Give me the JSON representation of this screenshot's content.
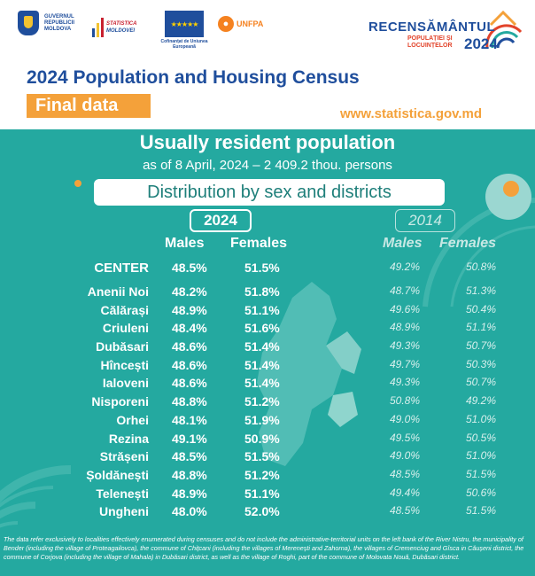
{
  "header": {
    "logos": {
      "gov": "GUVERNUL REPUBLICII MOLDOVA",
      "stat": "STATISTICA",
      "stat_accent": "MOLDOVEI",
      "eu_caption": "Cofinanțat de Uniunea Europeană",
      "unfpa": "UNFPA"
    },
    "census_logo": {
      "title": "RECENSĂMÂNTUL",
      "subtitle": "POPULAȚIEI ȘI LOCUINȚELOR",
      "year": "2024"
    },
    "title": "2024 Population and Housing Census",
    "badge": "Final data",
    "website": "www.statistica.gov.md"
  },
  "main": {
    "title": "Usually resident population",
    "date_line": "as of 8 April, 2024 – 2 409.2 thou. persons",
    "distribution_label": "Distribution by sex and districts",
    "year_current": "2024",
    "year_previous": "2014",
    "col_males": "Males",
    "col_females": "Females",
    "col_males_old": "Males",
    "col_females_old": "Females"
  },
  "table": {
    "rows": [
      {
        "name": "CENTER",
        "m": "48.5%",
        "f": "51.5%",
        "mo": "49.2%",
        "fo": "50.8%"
      },
      {
        "name": "Anenii Noi",
        "m": "48.2%",
        "f": "51.8%",
        "mo": "48.7%",
        "fo": "51.3%"
      },
      {
        "name": "Călărași",
        "m": "48.9%",
        "f": "51.1%",
        "mo": "49.6%",
        "fo": "50.4%"
      },
      {
        "name": "Criuleni",
        "m": "48.4%",
        "f": "51.6%",
        "mo": "48.9%",
        "fo": "51.1%"
      },
      {
        "name": "Dubăsari",
        "m": "48.6%",
        "f": "51.4%",
        "mo": "49.3%",
        "fo": "50.7%"
      },
      {
        "name": "Hîncești",
        "m": "48.6%",
        "f": "51.4%",
        "mo": "49.7%",
        "fo": "50.3%"
      },
      {
        "name": "Ialoveni",
        "m": "48.6%",
        "f": "51.4%",
        "mo": "49.3%",
        "fo": "50.7%"
      },
      {
        "name": "Nisporeni",
        "m": "48.8%",
        "f": "51.2%",
        "mo": "50.8%",
        "fo": "49.2%"
      },
      {
        "name": "Orhei",
        "m": "48.1%",
        "f": "51.9%",
        "mo": "49.0%",
        "fo": "51.0%"
      },
      {
        "name": "Rezina",
        "m": "49.1%",
        "f": "50.9%",
        "mo": "49.5%",
        "fo": "50.5%"
      },
      {
        "name": "Strășeni",
        "m": "48.5%",
        "f": "51.5%",
        "mo": "49.0%",
        "fo": "51.0%"
      },
      {
        "name": "Șoldănești",
        "m": "48.8%",
        "f": "51.2%",
        "mo": "48.5%",
        "fo": "51.5%"
      },
      {
        "name": "Telenești",
        "m": "48.9%",
        "f": "51.1%",
        "mo": "49.4%",
        "fo": "50.6%"
      },
      {
        "name": "Ungheni",
        "m": "48.0%",
        "f": "52.0%",
        "mo": "48.5%",
        "fo": "51.5%"
      }
    ]
  },
  "footnote": "The data refer exclusively to localities effectively enumerated during censuses and do not include the administrative-territorial units on the left bank of the River Nistru, the municipality of Bender (including the village of Proteagailovca), the commune of Chițcani (including the villages of Merenești and Zahorna), the villages of Cremenciug and Gîsca in Căușeni district, the commune of Corjova (including the village of Mahala) in Dubăsari district, as well as the village of Roghi, part of the commune of Molovata Nouă, Dubăsari district.",
  "colors": {
    "teal": "#24a9a0",
    "navy": "#1f4e9c",
    "orange": "#f4a13a",
    "red": "#e2432a"
  }
}
